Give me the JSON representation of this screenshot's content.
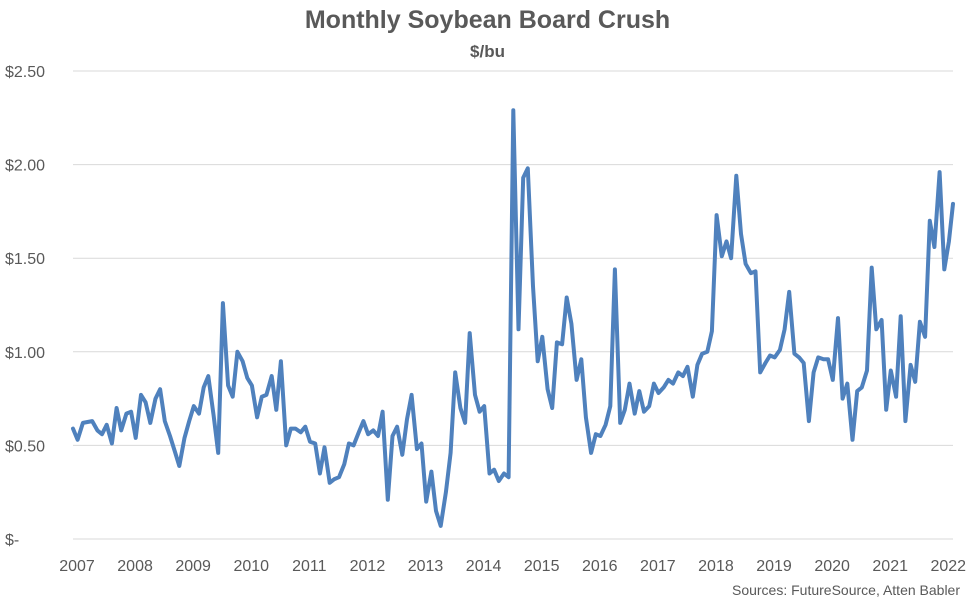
{
  "chart_data": {
    "type": "line",
    "title": "Monthly Soybean Board Crush",
    "subtitle": "$/bu",
    "xlabel": "",
    "ylabel": "",
    "x_ticks": [
      "2007",
      "2008",
      "2009",
      "2010",
      "2011",
      "2012",
      "2013",
      "2014",
      "2015",
      "2016",
      "2017",
      "2018",
      "2019",
      "2020",
      "2021",
      "2022"
    ],
    "y_ticks": [
      {
        "value": 0,
        "label": "$-"
      },
      {
        "value": 0.5,
        "label": "$0.50"
      },
      {
        "value": 1.0,
        "label": "$1.00"
      },
      {
        "value": 1.5,
        "label": "$1.50"
      },
      {
        "value": 2.0,
        "label": "$2.00"
      },
      {
        "value": 2.5,
        "label": "$2.50"
      }
    ],
    "ylim": [
      0,
      2.5
    ],
    "xlim": [
      2007,
      2022.15
    ],
    "grid": true,
    "color": "#4f81bd",
    "series": [
      {
        "name": "",
        "x": [
          2007.0,
          2007.08,
          2007.17,
          2007.33,
          2007.42,
          2007.5,
          2007.58,
          2007.67,
          2007.75,
          2007.83,
          2007.92,
          2008.0,
          2008.08,
          2008.17,
          2008.25,
          2008.33,
          2008.42,
          2008.5,
          2008.58,
          2008.67,
          2008.75,
          2008.83,
          2008.92,
          2009.0,
          2009.08,
          2009.17,
          2009.25,
          2009.33,
          2009.42,
          2009.5,
          2009.58,
          2009.67,
          2009.75,
          2009.83,
          2009.92,
          2010.0,
          2010.08,
          2010.17,
          2010.25,
          2010.33,
          2010.42,
          2010.5,
          2010.58,
          2010.67,
          2010.75,
          2010.83,
          2010.92,
          2011.0,
          2011.08,
          2011.17,
          2011.25,
          2011.33,
          2011.42,
          2011.5,
          2011.58,
          2011.67,
          2011.75,
          2011.83,
          2011.92,
          2012.0,
          2012.08,
          2012.17,
          2012.25,
          2012.33,
          2012.42,
          2012.5,
          2012.58,
          2012.67,
          2012.75,
          2012.83,
          2012.92,
          2013.0,
          2013.08,
          2013.17,
          2013.25,
          2013.33,
          2013.42,
          2013.5,
          2013.58,
          2013.67,
          2013.75,
          2013.83,
          2013.92,
          2014.0,
          2014.08,
          2014.17,
          2014.25,
          2014.33,
          2014.42,
          2014.5,
          2014.58,
          2014.67,
          2014.75,
          2014.83,
          2014.92,
          2015.0,
          2015.08,
          2015.17,
          2015.25,
          2015.33,
          2015.42,
          2015.5,
          2015.58,
          2015.67,
          2015.75,
          2015.83,
          2015.92,
          2016.0,
          2016.08,
          2016.17,
          2016.25,
          2016.33,
          2016.42,
          2016.5,
          2016.58,
          2016.67,
          2016.75,
          2016.83,
          2016.92,
          2017.0,
          2017.08,
          2017.17,
          2017.25,
          2017.33,
          2017.42,
          2017.5,
          2017.58,
          2017.67,
          2017.75,
          2017.83,
          2017.92,
          2018.0,
          2018.08,
          2018.17,
          2018.25,
          2018.33,
          2018.42,
          2018.5,
          2018.58,
          2018.67,
          2018.75,
          2018.83,
          2018.92,
          2019.0,
          2019.08,
          2019.17,
          2019.25,
          2019.33,
          2019.42,
          2019.5,
          2019.58,
          2019.67,
          2019.75,
          2019.83,
          2019.92,
          2020.0,
          2020.08,
          2020.17,
          2020.25,
          2020.33,
          2020.42,
          2020.5,
          2020.58,
          2020.67,
          2020.75,
          2020.83,
          2020.92,
          2021.0,
          2021.08,
          2021.17,
          2021.25,
          2021.33,
          2021.42,
          2021.5,
          2021.58,
          2021.67,
          2021.75,
          2021.83,
          2021.92,
          2022.0,
          2022.08,
          2022.15
        ],
        "values": [
          0.59,
          0.53,
          0.62,
          0.63,
          0.58,
          0.56,
          0.61,
          0.51,
          0.7,
          0.58,
          0.67,
          0.68,
          0.54,
          0.77,
          0.73,
          0.62,
          0.75,
          0.8,
          0.63,
          0.55,
          0.47,
          0.39,
          0.54,
          0.63,
          0.71,
          0.67,
          0.81,
          0.87,
          0.66,
          0.46,
          1.26,
          0.82,
          0.76,
          1.0,
          0.95,
          0.86,
          0.82,
          0.65,
          0.76,
          0.77,
          0.87,
          0.69,
          0.95,
          0.5,
          0.59,
          0.59,
          0.57,
          0.6,
          0.52,
          0.51,
          0.35,
          0.49,
          0.3,
          0.32,
          0.33,
          0.4,
          0.51,
          0.5,
          0.57,
          0.63,
          0.56,
          0.58,
          0.55,
          0.68,
          0.21,
          0.55,
          0.6,
          0.45,
          0.64,
          0.77,
          0.48,
          0.51,
          0.2,
          0.36,
          0.15,
          0.07,
          0.25,
          0.46,
          0.89,
          0.7,
          0.62,
          1.1,
          0.77,
          0.68,
          0.71,
          0.35,
          0.37,
          0.31,
          0.35,
          0.33,
          2.29,
          1.12,
          1.93,
          1.98,
          1.35,
          0.95,
          1.08,
          0.8,
          0.7,
          1.05,
          1.04,
          1.29,
          1.15,
          0.85,
          0.96,
          0.65,
          0.46,
          0.56,
          0.55,
          0.61,
          0.71,
          1.44,
          0.62,
          0.69,
          0.83,
          0.67,
          0.79,
          0.68,
          0.71,
          0.83,
          0.78,
          0.81,
          0.85,
          0.83,
          0.89,
          0.87,
          0.92,
          0.76,
          0.93,
          0.99,
          1.0,
          1.11,
          1.73,
          1.51,
          1.59,
          1.5,
          1.94,
          1.63,
          1.47,
          1.42,
          1.43,
          0.89,
          0.94,
          0.98,
          0.97,
          1.01,
          1.12,
          1.32,
          0.99,
          0.97,
          0.94,
          0.63,
          0.89,
          0.97,
          0.96,
          0.96,
          0.85,
          1.18,
          0.75,
          0.83,
          0.53,
          0.79,
          0.81,
          0.9,
          1.45,
          1.12,
          1.17,
          0.69,
          0.9,
          0.76,
          1.19,
          0.63,
          0.93,
          0.84,
          1.16,
          1.08,
          1.7,
          1.56,
          1.96,
          1.44,
          1.59,
          1.79
        ]
      }
    ]
  },
  "source_note": "Sources: FutureSource, Atten Babler"
}
